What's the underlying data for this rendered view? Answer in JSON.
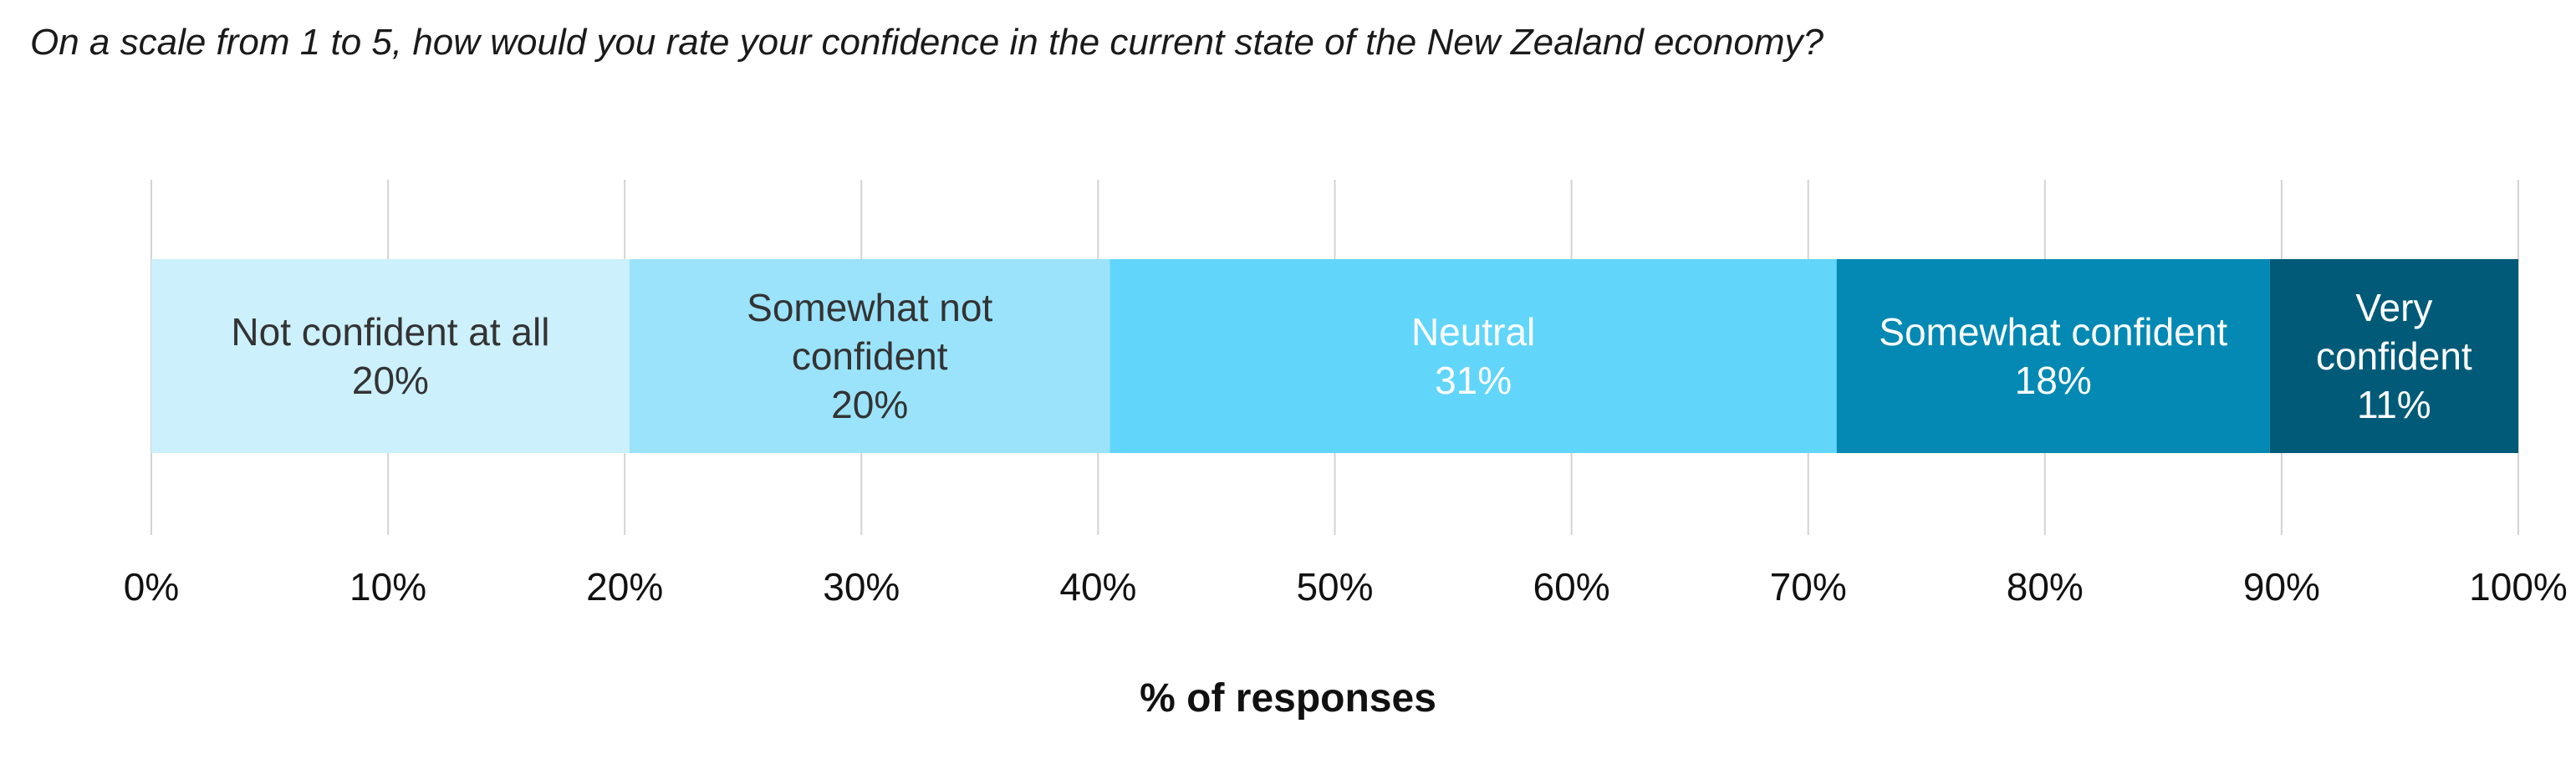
{
  "chart_data": {
    "type": "bar",
    "orientation": "horizontal",
    "stacked": true,
    "title": "On a scale from 1 to 5, how would you rate your confidence in the current state of the New Zealand economy?",
    "xlabel": "% of responses",
    "ylabel": "",
    "xlim": [
      0,
      100
    ],
    "x_ticks": [
      "0%",
      "10%",
      "20%",
      "30%",
      "40%",
      "50%",
      "60%",
      "70%",
      "80%",
      "90%",
      "100%"
    ],
    "grid": true,
    "series": [
      {
        "name": "Not confident at all",
        "value": 20.2,
        "value_label": "20%",
        "label_lines": [
          "Not confident at all"
        ],
        "color": "#ccf0fc",
        "text_color": "#333333"
      },
      {
        "name": "Somewhat not confident",
        "value": 20.3,
        "value_label": "20%",
        "label_lines": [
          "Somewhat not",
          "confident"
        ],
        "color": "#9be3fb",
        "text_color": "#333333"
      },
      {
        "name": "Neutral",
        "value": 30.7,
        "value_label": "31%",
        "label_lines": [
          "Neutral"
        ],
        "color": "#62d5fb",
        "text_color": "#ffffff"
      },
      {
        "name": "Somewhat confident",
        "value": 18.3,
        "value_label": "18%",
        "label_lines": [
          "Somewhat confident"
        ],
        "color": "#0389b3",
        "text_color": "#ffffff"
      },
      {
        "name": "Very confident",
        "value": 10.5,
        "value_label": "11%",
        "label_lines": [
          "Very",
          "confident"
        ],
        "color": "#005a78",
        "text_color": "#ffffff"
      }
    ]
  }
}
